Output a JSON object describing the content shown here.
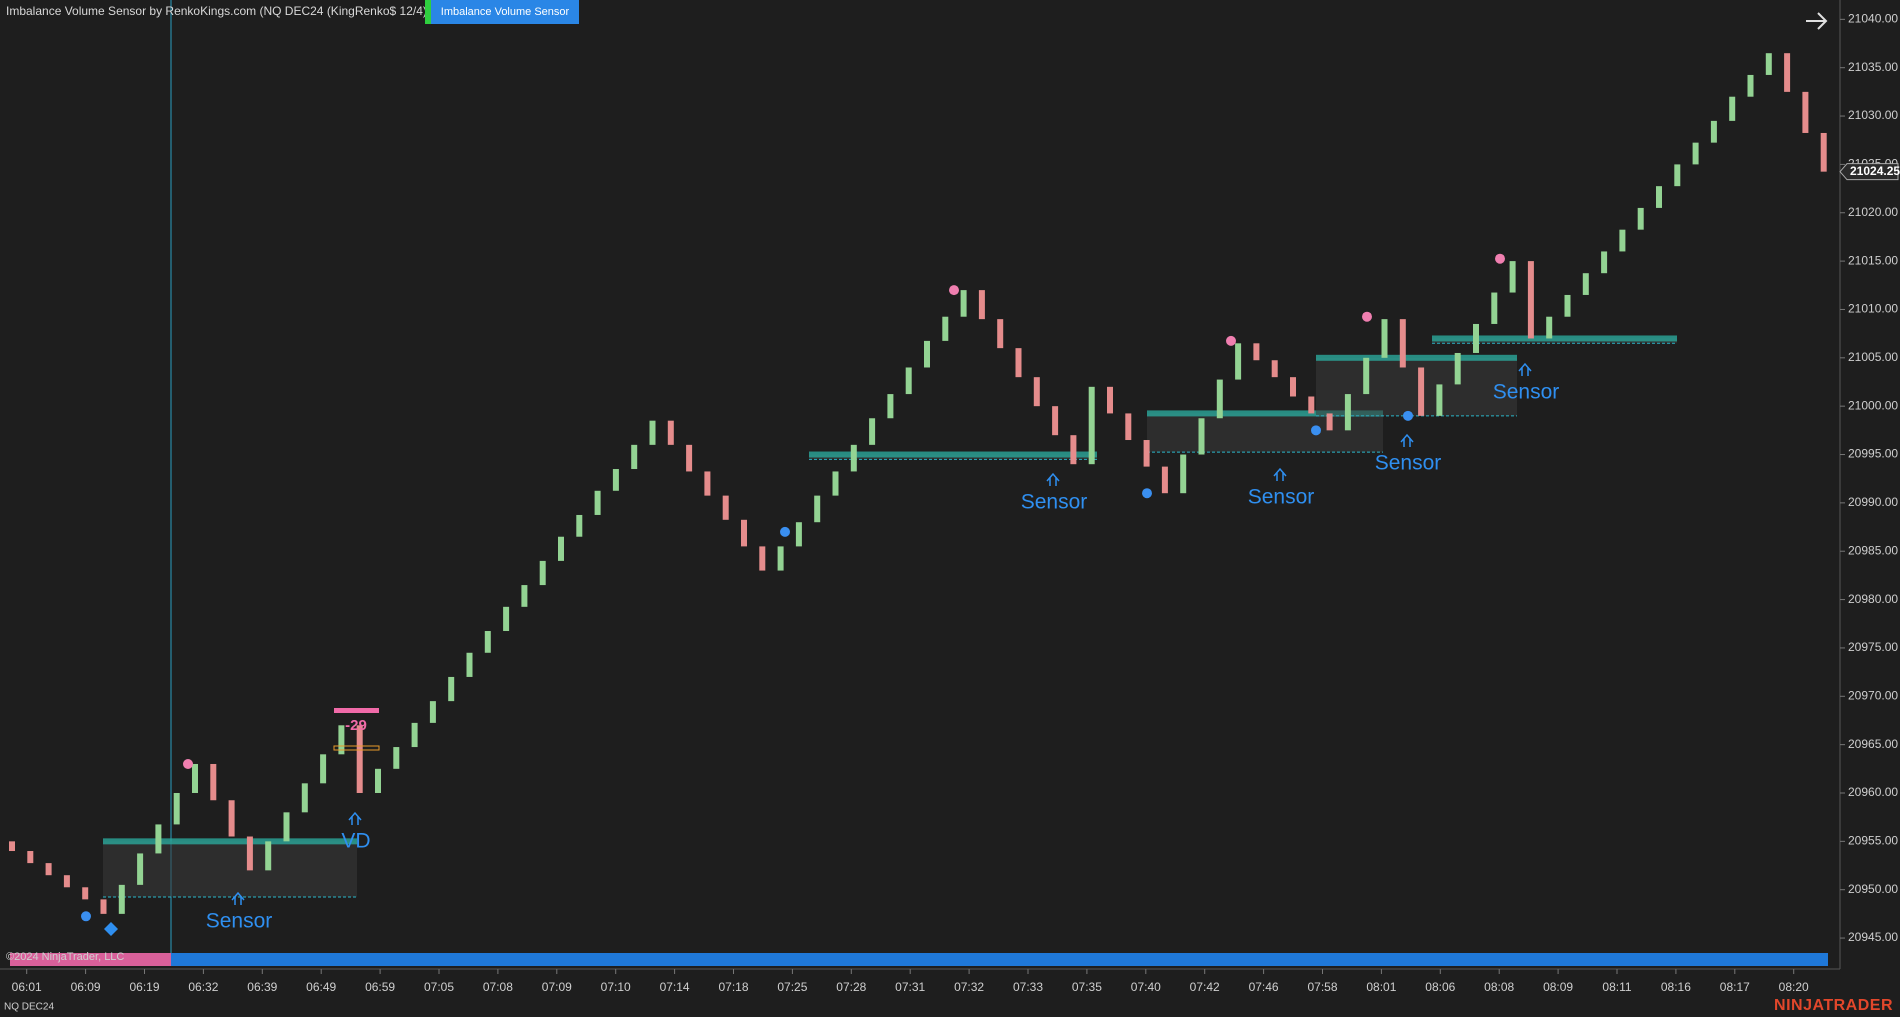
{
  "header": {
    "title": "Imbalance Volume Sensor by RenkoKings.com (NQ DEC24 (KingRenko$ 12/4))",
    "button": "Imbalance Volume Sensor"
  },
  "chart_data": {
    "type": "candlestick",
    "open": [
      20955,
      20954,
      20952.75,
      20951.5,
      20950.25,
      20949,
      20947.5,
      20950.5,
      20953.75,
      20956.75,
      20960,
      20963,
      20959.25,
      20955.5,
      20952,
      20955,
      20958,
      20961,
      20964,
      20967,
      20960,
      20962.5,
      20964.75,
      20967.25,
      20969.5,
      20972,
      20974.5,
      20976.75,
      20979.25,
      20981.5,
      20984,
      20986.5,
      20988.75,
      20991.25,
      20993.5,
      20996,
      20998.5,
      20996,
      20993.25,
      20990.75,
      20988.25,
      20985.5,
      20983,
      20985.5,
      20988,
      20990.75,
      20993.25,
      20996,
      20998.75,
      21001.25,
      21004,
      21006.75,
      21009.25,
      21012,
      21009,
      21006,
      21003,
      21000,
      20997,
      20994,
      21002,
      20999.25,
      20996.5,
      20993.75,
      20991,
      20995,
      20998.75,
      21002.75,
      21006.5,
      21004.75,
      21003,
      21001,
      20999.25,
      20997.5,
      21001.25,
      21005,
      21009,
      21004,
      20999,
      21002.25,
      21005.5,
      21008.5,
      21011.75,
      21015,
      21007,
      21009.25,
      21011.5,
      21013.75,
      21016,
      21018.25,
      21020.5,
      21022.75,
      21025,
      21027.25,
      21029.5,
      21032,
      21034.25,
      21036.5,
      21032.5,
      21028.25
    ],
    "close": [
      20954,
      20952.75,
      20951.5,
      20950.25,
      20949,
      20947.5,
      20950.5,
      20953.75,
      20956.75,
      20960,
      20963,
      20959.25,
      20955.5,
      20952,
      20955,
      20958,
      20961,
      20964,
      20967,
      20960,
      20962.5,
      20964.75,
      20967.25,
      20969.5,
      20972,
      20974.5,
      20976.75,
      20979.25,
      20981.5,
      20984,
      20986.5,
      20988.75,
      20991.25,
      20993.5,
      20996,
      20998.5,
      20996,
      20993.25,
      20990.75,
      20988.25,
      20985.5,
      20983,
      20985.5,
      20988,
      20990.75,
      20993.25,
      20996,
      20998.75,
      21001.25,
      21004,
      21006.75,
      21009.25,
      21012,
      21009,
      21006,
      21003,
      21000,
      20997,
      20994,
      21002,
      20999.25,
      20996.5,
      20993.75,
      20991,
      20995,
      20998.75,
      21002.75,
      21006.5,
      21004.75,
      21003,
      21001,
      20999.25,
      20997.5,
      21001.25,
      21005,
      21009,
      21004,
      20999,
      21002.25,
      21005.5,
      21008.5,
      21011.75,
      21015,
      21007,
      21009.25,
      21011.5,
      21013.75,
      21016,
      21018.25,
      21020.5,
      21022.75,
      21025,
      21027.25,
      21029.5,
      21032,
      21034.25,
      21036.5,
      21032.5,
      21028.25,
      21024.25
    ],
    "colors": {
      "up": "#93d393",
      "down": "#e58c8c",
      "zone": "#2aa79b",
      "axis_bar": "#1f78d8"
    },
    "ylim": [
      20941.8,
      21042
    ],
    "yticks": [
      {
        "value": 20945,
        "label": "20945.00"
      },
      {
        "value": 20950,
        "label": "20950.00"
      },
      {
        "value": 20955,
        "label": "20955.00"
      },
      {
        "value": 20960,
        "label": "20960.00"
      },
      {
        "value": 20965,
        "label": "20965.00"
      },
      {
        "value": 20970,
        "label": "20970.00"
      },
      {
        "value": 20975,
        "label": "20975.00"
      },
      {
        "value": 20980,
        "label": "20980.00"
      },
      {
        "value": 20985,
        "label": "20985.00"
      },
      {
        "value": 20990,
        "label": "20990.00"
      },
      {
        "value": 20995,
        "label": "20995.00"
      },
      {
        "value": 21000,
        "label": "21000.00"
      },
      {
        "value": 21005,
        "label": "21005.00"
      },
      {
        "value": 21010,
        "label": "21010.00"
      },
      {
        "value": 21015,
        "label": "21015.00"
      },
      {
        "value": 21020,
        "label": "21020.00"
      },
      {
        "value": 21025,
        "label": "21025.00"
      },
      {
        "value": 21030,
        "label": "21030.00"
      },
      {
        "value": 21035,
        "label": "21035.00"
      },
      {
        "value": 21040,
        "label": "21040.00"
      }
    ],
    "x_labels": [
      "06:01",
      "06:09",
      "06:19",
      "06:32",
      "06:39",
      "06:49",
      "06:59",
      "07:05",
      "07:08",
      "07:09",
      "07:10",
      "07:14",
      "07:18",
      "07:25",
      "07:28",
      "07:31",
      "07:32",
      "07:33",
      "07:35",
      "07:40",
      "07:42",
      "07:46",
      "07:58",
      "08:01",
      "08:06",
      "08:08",
      "08:09",
      "08:11",
      "08:16",
      "08:17",
      "08:20"
    ],
    "last_price": 21024.25,
    "zones": [
      {
        "top": 20955,
        "bottom": 20949.25
      },
      {
        "top": 20995,
        "bottom": 20994.5
      },
      {
        "top": 20999.25,
        "bottom": 20995.25
      },
      {
        "top": 21005,
        "bottom": 20999
      },
      {
        "top": 21007,
        "bottom": 21006.5
      }
    ],
    "markers": [
      {
        "price": 20963,
        "color": "#f07fb0"
      },
      {
        "price": 21012,
        "color": "#f07fb0"
      },
      {
        "price": 21006.75,
        "color": "#f07fb0"
      },
      {
        "price": 21009.25,
        "color": "#f07fb0"
      },
      {
        "price": 21015.25,
        "color": "#f07fb0"
      },
      {
        "price": 20947.25,
        "color": "#3a8ff0"
      },
      {
        "price": 20987,
        "color": "#3a8ff0"
      },
      {
        "price": 20991,
        "color": "#3a8ff0"
      },
      {
        "price": 20997.5,
        "color": "#3a8ff0"
      },
      {
        "price": 20999,
        "color": "#3a8ff0"
      }
    ],
    "annotations": [
      {
        "text": "Sensor"
      },
      {
        "text": "Sensor"
      },
      {
        "text": "Sensor"
      },
      {
        "text": "Sensor"
      },
      {
        "text": "Sensor"
      },
      {
        "text": "VD"
      },
      {
        "text": "-29"
      }
    ]
  },
  "footer": {
    "copyright": "©2024 NinjaTrader, LLC",
    "instrument": "NQ DEC24",
    "logo": "NINJATRADER"
  }
}
